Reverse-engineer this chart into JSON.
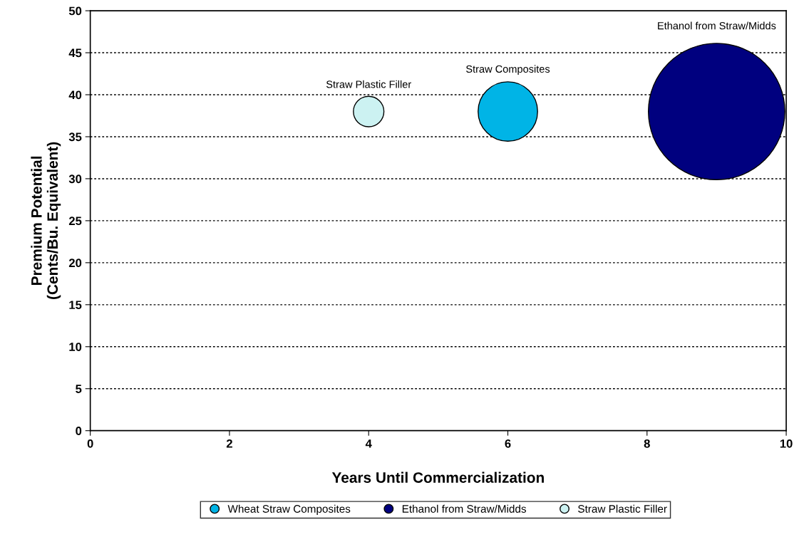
{
  "chart_data": {
    "type": "bubble",
    "xlabel": "Years Until Commercialization",
    "ylabel": "Premium Potential\n(Cents/Bu. Equivalent)",
    "series": [
      {
        "name": "Wheat Straw Composites",
        "color": "#00b4e6",
        "x": [
          6
        ],
        "values": [
          38
        ],
        "sizes": [
          0.19
        ],
        "value_labels": [
          "Straw Composites"
        ]
      },
      {
        "name": "Ethanol from Straw/Midds",
        "color": "#00007f",
        "x": [
          9
        ],
        "values": [
          38
        ],
        "sizes": [
          1
        ],
        "value_labels": [
          "Ethanol from Straw/Midds"
        ]
      },
      {
        "name": "Straw Plastic Filler",
        "color": "#ccf2f2",
        "x": [
          4
        ],
        "values": [
          38
        ],
        "sizes": [
          0.05
        ],
        "value_labels": [
          "Straw Plastic Filler"
        ]
      }
    ],
    "xlim": [
      0,
      10
    ],
    "xticks": [
      0,
      2,
      4,
      6,
      8,
      10
    ],
    "ylim": [
      0,
      50
    ],
    "yticks": [
      0,
      5,
      10,
      15,
      20,
      25,
      30,
      35,
      40,
      45,
      50
    ],
    "grid": "y",
    "legend": "bottom"
  }
}
